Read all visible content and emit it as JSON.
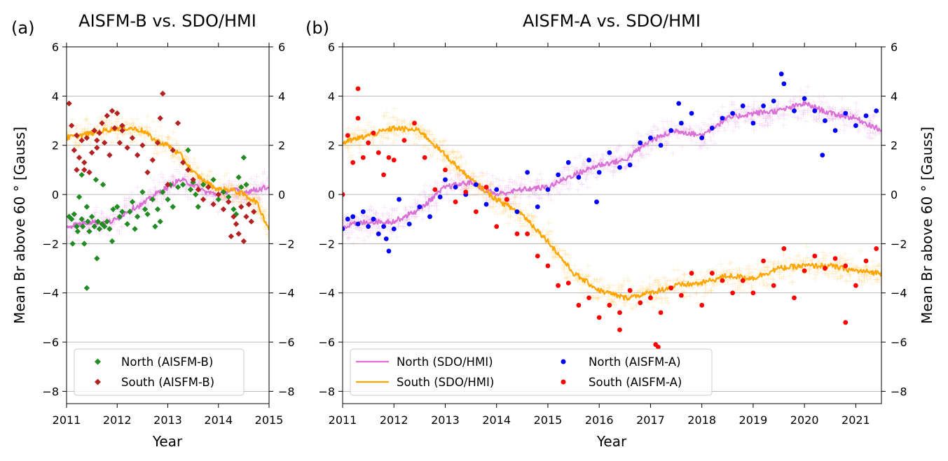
{
  "chart_data": [
    {
      "panel_label": "(a)",
      "type": "scatter",
      "title": "AISFM-B  vs. SDO/HMI",
      "xlabel": "Year",
      "ylabel": "Mean Br above 60$^\\circ$ [Gauss]",
      "ylabel_display": "Mean Br above 60 ° [Gauss]",
      "xlim": [
        2011,
        2015
      ],
      "ylim": [
        -8.5,
        6
      ],
      "xticks": [
        2011,
        2012,
        2013,
        2014,
        2015
      ],
      "xtick_labels": [
        "2011",
        "2012",
        "2013",
        "2014",
        "2015"
      ],
      "yticks": [
        -8,
        -6,
        -4,
        -2,
        0,
        2,
        4,
        6
      ],
      "ytick_labels": [
        "−8",
        "−6",
        "−4",
        "−2",
        "0",
        "2",
        "4",
        "6"
      ],
      "grid": "y",
      "legend_position": "lower-left",
      "series": [
        {
          "name": "North (SDO/HMI)",
          "kind": "line",
          "color": "#da70d6",
          "in_legend": false,
          "x": [
            2011.0,
            2011.25,
            2011.5,
            2011.75,
            2012.0,
            2012.25,
            2012.5,
            2012.75,
            2013.0,
            2013.25,
            2013.5,
            2013.75,
            2014.0,
            2014.25,
            2014.5,
            2014.75,
            2015.0
          ],
          "y": [
            -1.3,
            -1.2,
            -1.1,
            -1.2,
            -1.0,
            -0.6,
            -0.4,
            0.0,
            0.3,
            0.6,
            0.4,
            0.1,
            0.0,
            0.2,
            0.1,
            0.2,
            0.3
          ]
        },
        {
          "name": "South (SDO/HMI)",
          "kind": "line",
          "color": "#ffa500",
          "in_legend": false,
          "x": [
            2011.0,
            2011.25,
            2011.5,
            2011.75,
            2012.0,
            2012.25,
            2012.5,
            2012.75,
            2013.0,
            2013.25,
            2013.5,
            2013.75,
            2014.0,
            2014.25,
            2014.5,
            2014.75,
            2015.0
          ],
          "y": [
            2.3,
            2.4,
            2.5,
            2.6,
            2.7,
            2.7,
            2.6,
            2.2,
            2.0,
            1.6,
            0.9,
            0.5,
            0.2,
            0.2,
            0.0,
            -0.3,
            -1.4
          ]
        },
        {
          "name": "North (AISFM-B)",
          "kind": "marker",
          "marker": "diamond",
          "color": "#228b22",
          "in_legend": true,
          "x": [
            2011.05,
            2011.1,
            2011.12,
            2011.15,
            2011.2,
            2011.22,
            2011.25,
            2011.3,
            2011.32,
            2011.35,
            2011.4,
            2011.42,
            2011.45,
            2011.5,
            2011.55,
            2011.58,
            2011.62,
            2011.65,
            2011.7,
            2011.72,
            2011.75,
            2011.8,
            2011.85,
            2011.9,
            2011.92,
            2012.0,
            2012.05,
            2012.1,
            2012.2,
            2012.25,
            2012.3,
            2012.35,
            2012.4,
            2012.5,
            2012.55,
            2012.6,
            2012.7,
            2012.75,
            2012.8,
            2012.85,
            2012.9,
            2013.0,
            2013.05,
            2013.1,
            2013.2,
            2013.3,
            2013.4,
            2013.45,
            2013.5,
            2013.55,
            2013.6,
            2013.7,
            2013.8,
            2013.9,
            2014.0,
            2014.1,
            2014.2,
            2014.3,
            2014.35,
            2014.4,
            2014.45,
            2014.5,
            2014.55,
            2011.4,
            2011.6,
            2011.3
          ],
          "y": [
            -0.9,
            -1.0,
            -2.0,
            -0.8,
            -1.3,
            -1.5,
            -0.1,
            -1.0,
            -1.3,
            -2.0,
            -0.5,
            -1.1,
            -1.5,
            -0.9,
            -1.3,
            0.6,
            -1.1,
            -1.4,
            -1.2,
            0.4,
            -1.3,
            -1.1,
            -1.4,
            -1.9,
            -0.6,
            -0.5,
            -0.9,
            -0.7,
            -1.2,
            -0.7,
            -0.3,
            -1.4,
            -0.9,
            0.1,
            -0.6,
            -0.8,
            -0.2,
            -1.3,
            -0.6,
            -1.1,
            0.1,
            -0.2,
            0.4,
            -0.5,
            0.3,
            0.4,
            1.8,
            0.2,
            0.5,
            0.0,
            -0.5,
            0.4,
            0.3,
            0.6,
            -0.2,
            0.1,
            -0.1,
            -0.6,
            -0.8,
            0.7,
            0.3,
            1.5,
            0.4,
            -3.8,
            -2.6,
            0.8
          ]
        },
        {
          "name": "South (AISFM-B)",
          "kind": "marker",
          "marker": "diamond",
          "color": "#b22222",
          "in_legend": true,
          "x": [
            2011.05,
            2011.1,
            2011.15,
            2011.2,
            2011.25,
            2011.3,
            2011.35,
            2011.4,
            2011.45,
            2011.5,
            2011.55,
            2011.6,
            2011.65,
            2011.7,
            2011.75,
            2011.8,
            2011.85,
            2011.9,
            2011.95,
            2012.0,
            2012.05,
            2012.1,
            2012.2,
            2012.3,
            2012.4,
            2012.5,
            2012.6,
            2012.7,
            2012.8,
            2012.85,
            2012.9,
            2013.0,
            2013.1,
            2013.2,
            2013.3,
            2013.4,
            2013.5,
            2013.6,
            2013.7,
            2013.8,
            2013.9,
            2014.0,
            2014.1,
            2014.2,
            2014.25,
            2014.3,
            2014.35,
            2014.4,
            2014.45,
            2014.5,
            2014.55,
            2014.6,
            2014.65,
            2014.7,
            2011.2,
            2011.35,
            2011.6,
            2012.1
          ],
          "y": [
            3.7,
            2.8,
            1.8,
            2.4,
            1.5,
            2.2,
            1.3,
            2.3,
            0.9,
            1.7,
            2.6,
            2.2,
            2.5,
            2.9,
            2.1,
            3.2,
            1.6,
            3.4,
            2.7,
            3.3,
            2.1,
            2.6,
            1.9,
            2.3,
            1.6,
            2.0,
            0.9,
            1.4,
            2.1,
            3.1,
            4.1,
            0.4,
            1.8,
            2.9,
            1.3,
            1.0,
            0.6,
            0.2,
            -0.2,
            0.3,
            -0.4,
            0.0,
            -0.6,
            -0.3,
            -1.7,
            -0.9,
            -1.2,
            -1.6,
            -0.5,
            -1.9,
            -0.9,
            -0.4,
            -1.1,
            -0.7,
            1.0,
            1.0,
            1.9,
            2.8
          ]
        }
      ]
    },
    {
      "panel_label": "(b)",
      "type": "scatter",
      "title": "AISFM-A  vs. SDO/HMI",
      "xlabel": "Year",
      "ylabel": "Mean Br above 60$^\\circ$ [Gauss]",
      "ylabel_display": "Mean Br above 60 ° [Gauss]",
      "xlim": [
        2011,
        2021.5
      ],
      "ylim": [
        -8.5,
        6
      ],
      "xticks": [
        2011,
        2012,
        2013,
        2014,
        2015,
        2016,
        2017,
        2018,
        2019,
        2020,
        2021
      ],
      "xtick_labels": [
        "2011",
        "2012",
        "2013",
        "2014",
        "2015",
        "2016",
        "2017",
        "2018",
        "2019",
        "2020",
        "2021"
      ],
      "yticks": [
        -8,
        -6,
        -4,
        -2,
        0,
        2,
        4,
        6
      ],
      "ytick_labels": [
        "−8",
        "−6",
        "−4",
        "−2",
        "0",
        "2",
        "4",
        "6"
      ],
      "grid": "y",
      "legend_position": "lower-left",
      "legend_columns": 2,
      "series": [
        {
          "name": "North (SDO/HMI)",
          "kind": "line",
          "color": "#da70d6",
          "in_legend": true,
          "x": [
            2011.0,
            2011.5,
            2012.0,
            2012.5,
            2013.0,
            2013.5,
            2014.0,
            2014.5,
            2015.0,
            2015.5,
            2016.0,
            2016.5,
            2017.0,
            2017.5,
            2018.0,
            2018.5,
            2019.0,
            2019.5,
            2020.0,
            2020.5,
            2021.0,
            2021.5
          ],
          "y": [
            -1.3,
            -1.1,
            -1.1,
            -0.6,
            0.3,
            0.5,
            0.0,
            0.2,
            0.3,
            0.8,
            1.2,
            1.4,
            2.2,
            2.6,
            2.4,
            3.1,
            3.3,
            3.4,
            3.7,
            3.3,
            3.1,
            2.6
          ]
        },
        {
          "name": "South (SDO/HMI)",
          "kind": "line",
          "color": "#ffa500",
          "in_legend": true,
          "x": [
            2011.0,
            2011.5,
            2012.0,
            2012.5,
            2013.0,
            2013.5,
            2014.0,
            2014.5,
            2015.0,
            2015.5,
            2016.0,
            2016.5,
            2017.0,
            2017.5,
            2018.0,
            2018.5,
            2019.0,
            2019.5,
            2020.0,
            2020.5,
            2021.0,
            2021.5
          ],
          "y": [
            2.1,
            2.4,
            2.7,
            2.6,
            1.6,
            0.6,
            -0.2,
            -0.8,
            -1.9,
            -3.2,
            -3.9,
            -4.2,
            -4.0,
            -3.7,
            -3.6,
            -3.3,
            -3.4,
            -3.0,
            -2.9,
            -2.9,
            -3.1,
            -3.2
          ]
        },
        {
          "name": "North (AISFM-A)",
          "kind": "marker",
          "marker": "circle",
          "color": "#0000ff",
          "in_legend": true,
          "x": [
            2011.0,
            2011.1,
            2011.2,
            2011.3,
            2011.4,
            2011.5,
            2011.6,
            2011.7,
            2011.8,
            2011.9,
            2012.0,
            2012.1,
            2012.3,
            2012.5,
            2012.7,
            2012.9,
            2013.0,
            2013.2,
            2013.4,
            2013.6,
            2013.8,
            2014.0,
            2014.2,
            2014.4,
            2014.6,
            2014.8,
            2015.0,
            2015.2,
            2015.4,
            2015.6,
            2015.8,
            2016.0,
            2016.2,
            2016.4,
            2016.6,
            2016.8,
            2017.0,
            2017.2,
            2017.4,
            2017.6,
            2017.8,
            2018.0,
            2018.2,
            2018.4,
            2018.6,
            2018.8,
            2019.0,
            2019.2,
            2019.4,
            2019.6,
            2019.8,
            2020.0,
            2020.2,
            2020.4,
            2020.6,
            2020.8,
            2021.0,
            2021.2,
            2021.4,
            2011.85,
            2015.95,
            2017.55,
            2019.55,
            2020.35
          ],
          "y": [
            -1.4,
            -1.0,
            -0.9,
            -1.2,
            -0.7,
            -1.3,
            -1.0,
            -1.6,
            -1.3,
            -2.3,
            -1.4,
            -0.2,
            -1.2,
            -0.5,
            -0.9,
            -0.1,
            0.6,
            0.3,
            0.0,
            0.4,
            -0.4,
            0.2,
            -0.2,
            -0.7,
            0.9,
            -0.5,
            0.2,
            0.8,
            1.3,
            0.7,
            1.4,
            0.9,
            1.7,
            1.1,
            1.2,
            2.1,
            2.3,
            2.0,
            2.6,
            2.9,
            3.3,
            2.3,
            2.7,
            3.1,
            3.3,
            3.6,
            2.9,
            3.6,
            3.8,
            4.5,
            3.4,
            3.9,
            3.4,
            3.0,
            2.6,
            3.3,
            2.8,
            3.2,
            3.4,
            -1.8,
            -0.3,
            3.7,
            4.9,
            1.6
          ]
        },
        {
          "name": "South (AISFM-A)",
          "kind": "marker",
          "marker": "circle",
          "color": "#ff0000",
          "in_legend": true,
          "x": [
            2011.0,
            2011.1,
            2011.2,
            2011.3,
            2011.4,
            2011.5,
            2011.6,
            2011.7,
            2011.8,
            2011.9,
            2012.0,
            2012.2,
            2012.4,
            2012.6,
            2012.8,
            2013.0,
            2013.2,
            2013.4,
            2013.6,
            2013.8,
            2014.0,
            2014.2,
            2014.4,
            2014.6,
            2014.8,
            2015.0,
            2015.2,
            2015.4,
            2015.6,
            2015.8,
            2016.0,
            2016.2,
            2016.4,
            2016.6,
            2016.8,
            2017.0,
            2017.2,
            2017.4,
            2017.6,
            2017.8,
            2018.0,
            2018.2,
            2018.4,
            2018.6,
            2018.8,
            2019.0,
            2019.2,
            2019.4,
            2019.6,
            2019.8,
            2020.0,
            2020.2,
            2020.4,
            2020.6,
            2020.8,
            2021.0,
            2021.2,
            2021.4,
            2011.3,
            2017.1,
            2017.15,
            2020.8,
            2016.4
          ],
          "y": [
            0.0,
            2.4,
            1.3,
            3.1,
            1.5,
            2.1,
            2.5,
            1.7,
            0.8,
            1.5,
            1.4,
            2.2,
            2.9,
            1.5,
            0.2,
            1.0,
            -0.3,
            0.1,
            -0.7,
            0.3,
            -1.3,
            -0.2,
            -1.6,
            -1.6,
            -2.5,
            -2.9,
            -3.7,
            -3.6,
            -4.5,
            -4.2,
            -5.0,
            -4.5,
            -4.8,
            -3.9,
            -4.4,
            -4.2,
            -4.8,
            -3.8,
            -4.1,
            -3.2,
            -4.5,
            -3.2,
            -3.5,
            -4.0,
            -3.5,
            -4.0,
            -2.7,
            -3.7,
            -2.2,
            -4.2,
            -3.1,
            -2.5,
            -3.0,
            -2.6,
            -2.9,
            -3.7,
            -2.7,
            -2.2,
            4.3,
            -6.1,
            -6.2,
            -5.2,
            -5.5
          ]
        },
        {
          "name": "North scatter (SDO/HMI)",
          "kind": "cloud",
          "marker": "plus",
          "color": "#da70d6",
          "in_legend": false,
          "note": "faint daily measurements around the North (SDO/HMI) curve"
        },
        {
          "name": "South scatter (SDO/HMI)",
          "kind": "cloud",
          "marker": "plus",
          "color": "#ffa500",
          "in_legend": false,
          "note": "faint daily measurements around the South (SDO/HMI) curve"
        }
      ]
    }
  ],
  "legend_a": {
    "north_label": "North (AISFM-B)",
    "south_label": "South (AISFM-B)"
  },
  "legend_b": {
    "north_hmi_label": "North (SDO/HMI)",
    "south_hmi_label": "South (SDO/HMI)",
    "north_aisfm_label": "North (AISFM-A)",
    "south_aisfm_label": "South (AISFM-A)"
  },
  "colors": {
    "north_hmi": "#da70d6",
    "south_hmi": "#ffa500",
    "north_aisfm_b": "#228b22",
    "south_aisfm_b": "#b22222",
    "north_aisfm_a": "#0000ff",
    "south_aisfm_a": "#ff0000",
    "grid": "#b0b0b0"
  }
}
